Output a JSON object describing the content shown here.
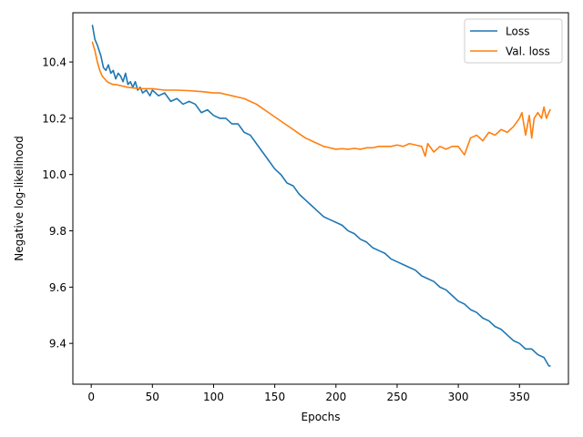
{
  "chart_data": {
    "type": "line",
    "title": "",
    "xlabel": "Epochs",
    "ylabel": "Negative log-likelihood",
    "xlim": [
      -15,
      390
    ],
    "ylim": [
      9.255,
      10.575
    ],
    "xticks": [
      0,
      50,
      100,
      150,
      200,
      250,
      300,
      350
    ],
    "yticks": [
      9.4,
      9.6,
      9.8,
      10.0,
      10.2,
      10.4
    ],
    "ytick_labels": [
      "9.4",
      "9.6",
      "9.8",
      "10.0",
      "10.2",
      "10.4"
    ],
    "grid": false,
    "legend_position": "top-right",
    "series": [
      {
        "name": "Loss",
        "color": "#1f77b4",
        "x": [
          1,
          3,
          5,
          8,
          10,
          12,
          14,
          16,
          18,
          20,
          22,
          24,
          26,
          28,
          30,
          32,
          34,
          36,
          38,
          40,
          42,
          45,
          48,
          50,
          55,
          60,
          65,
          70,
          75,
          80,
          85,
          90,
          95,
          100,
          105,
          110,
          115,
          120,
          125,
          130,
          135,
          140,
          145,
          150,
          155,
          160,
          165,
          170,
          175,
          180,
          185,
          190,
          195,
          200,
          205,
          210,
          215,
          220,
          225,
          230,
          235,
          240,
          245,
          250,
          255,
          260,
          265,
          270,
          275,
          280,
          285,
          290,
          295,
          300,
          305,
          310,
          315,
          320,
          325,
          330,
          335,
          340,
          345,
          350,
          355,
          360,
          365,
          370,
          374,
          375
        ],
        "y": [
          10.53,
          10.48,
          10.46,
          10.42,
          10.38,
          10.37,
          10.39,
          10.36,
          10.37,
          10.34,
          10.36,
          10.35,
          10.33,
          10.36,
          10.32,
          10.33,
          10.31,
          10.33,
          10.3,
          10.31,
          10.29,
          10.3,
          10.28,
          10.3,
          10.28,
          10.29,
          10.26,
          10.27,
          10.25,
          10.26,
          10.25,
          10.22,
          10.23,
          10.21,
          10.2,
          10.2,
          10.18,
          10.18,
          10.15,
          10.14,
          10.11,
          10.08,
          10.05,
          10.02,
          10.0,
          9.97,
          9.96,
          9.93,
          9.91,
          9.89,
          9.87,
          9.85,
          9.84,
          9.83,
          9.82,
          9.8,
          9.79,
          9.77,
          9.76,
          9.74,
          9.73,
          9.72,
          9.7,
          9.69,
          9.68,
          9.67,
          9.66,
          9.64,
          9.63,
          9.62,
          9.6,
          9.59,
          9.57,
          9.55,
          9.54,
          9.52,
          9.51,
          9.49,
          9.48,
          9.46,
          9.45,
          9.43,
          9.41,
          9.4,
          9.38,
          9.38,
          9.36,
          9.35,
          9.32,
          9.32
        ]
      },
      {
        "name": "Val. loss",
        "color": "#ff7f0e",
        "x": [
          1,
          3,
          5,
          7,
          9,
          11,
          13,
          15,
          18,
          20,
          25,
          30,
          40,
          50,
          60,
          70,
          80,
          90,
          100,
          105,
          110,
          115,
          120,
          125,
          130,
          135,
          140,
          145,
          150,
          155,
          160,
          165,
          170,
          175,
          180,
          185,
          190,
          195,
          200,
          205,
          210,
          215,
          220,
          225,
          230,
          235,
          240,
          245,
          250,
          255,
          260,
          265,
          270,
          273,
          275,
          280,
          285,
          290,
          295,
          300,
          305,
          310,
          315,
          320,
          325,
          330,
          335,
          340,
          345,
          350,
          352,
          355,
          358,
          360,
          362,
          365,
          368,
          370,
          372,
          375
        ],
        "y": [
          10.47,
          10.44,
          10.4,
          10.37,
          10.35,
          10.34,
          10.33,
          10.325,
          10.32,
          10.32,
          10.315,
          10.31,
          10.305,
          10.305,
          10.3,
          10.3,
          10.298,
          10.295,
          10.29,
          10.29,
          10.285,
          10.28,
          10.275,
          10.27,
          10.26,
          10.25,
          10.235,
          10.22,
          10.205,
          10.19,
          10.175,
          10.16,
          10.145,
          10.13,
          10.12,
          10.11,
          10.1,
          10.095,
          10.09,
          10.092,
          10.09,
          10.093,
          10.09,
          10.095,
          10.095,
          10.1,
          10.1,
          10.1,
          10.105,
          10.1,
          10.11,
          10.105,
          10.1,
          10.065,
          10.11,
          10.08,
          10.1,
          10.09,
          10.1,
          10.1,
          10.07,
          10.13,
          10.14,
          10.12,
          10.15,
          10.14,
          10.16,
          10.15,
          10.17,
          10.2,
          10.22,
          10.14,
          10.21,
          10.13,
          10.2,
          10.22,
          10.2,
          10.24,
          10.2,
          10.23
        ]
      }
    ]
  }
}
